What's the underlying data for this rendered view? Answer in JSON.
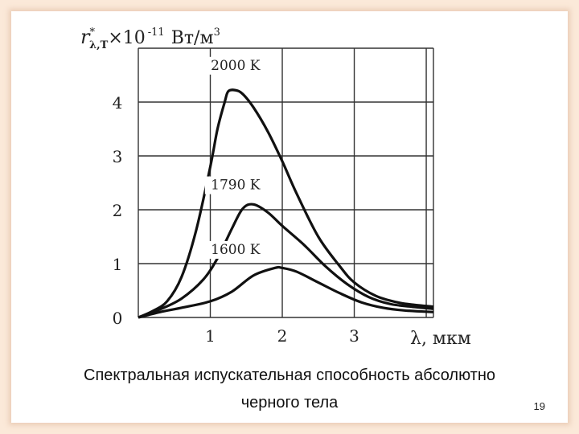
{
  "chart_data": {
    "type": "line",
    "ylabel": {
      "symbol": "r",
      "superscript": "*",
      "subscript": "λ,T",
      "multiplier": "×10",
      "exponent": "-11",
      "units": "Вт/м",
      "units_exp": "3"
    },
    "xlabel": "λ, мкм",
    "xlim": [
      0,
      4.1
    ],
    "ylim": [
      0,
      5
    ],
    "x_ticks": [
      "1",
      "2",
      "3"
    ],
    "y_ticks": [
      "0",
      "1",
      "2",
      "3",
      "4"
    ],
    "grid": true,
    "series": [
      {
        "name": "2000 K",
        "x": [
          0,
          0.2,
          0.4,
          0.6,
          0.8,
          1.0,
          1.1,
          1.2,
          1.25,
          1.35,
          1.45,
          1.6,
          1.8,
          2.0,
          2.2,
          2.5,
          2.8,
          3.0,
          3.3,
          3.6,
          3.8,
          4.1
        ],
        "values": [
          0,
          0.12,
          0.3,
          0.75,
          1.6,
          2.8,
          3.5,
          4.0,
          4.2,
          4.22,
          4.15,
          3.9,
          3.45,
          2.9,
          2.3,
          1.5,
          0.95,
          0.65,
          0.4,
          0.28,
          0.24,
          0.2
        ]
      },
      {
        "name": "1790 K",
        "x": [
          0,
          0.3,
          0.6,
          0.9,
          1.1,
          1.3,
          1.45,
          1.6,
          1.8,
          2.0,
          2.3,
          2.6,
          2.9,
          3.2,
          3.5,
          3.8,
          4.1
        ],
        "values": [
          0,
          0.15,
          0.35,
          0.7,
          1.1,
          1.65,
          2.02,
          2.1,
          1.95,
          1.7,
          1.35,
          0.95,
          0.62,
          0.38,
          0.25,
          0.2,
          0.16
        ]
      },
      {
        "name": "1600 K",
        "x": [
          0,
          0.3,
          0.6,
          1.0,
          1.3,
          1.6,
          1.9,
          2.0,
          2.2,
          2.5,
          2.8,
          3.1,
          3.4,
          3.7,
          4.1
        ],
        "values": [
          0,
          0.1,
          0.18,
          0.3,
          0.48,
          0.78,
          0.92,
          0.92,
          0.85,
          0.65,
          0.45,
          0.28,
          0.18,
          0.13,
          0.1
        ]
      }
    ],
    "curve_labels": [
      "2000 K",
      "1790 K",
      "1600 K"
    ]
  },
  "caption": {
    "line1": "Спектральная испускательная способность абсолютно",
    "line2": "черного тела"
  },
  "page_number": "19"
}
